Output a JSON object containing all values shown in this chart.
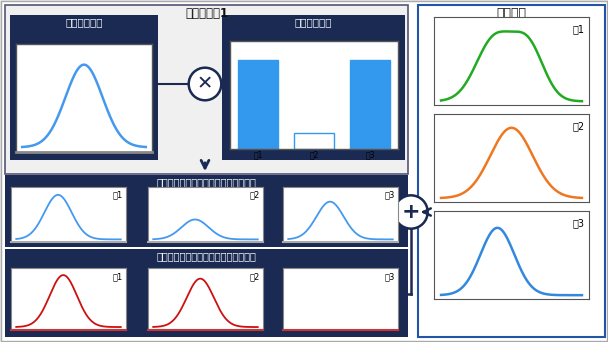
{
  "title_main": "筋シナジー1",
  "title_right": "筋活動量",
  "label_time": "時間パターン",
  "label_combine": "結合パターン",
  "label_synergy1": "筋シナジー１によって生じる筋活動量",
  "label_synergy2": "筋シナジー２によって生じる筋活動量",
  "muscle_labels": [
    "筋1",
    "筋2",
    "筋3"
  ],
  "dark_navy": "#1a2a52",
  "mid_blue": "#1e3a6e",
  "border_blue": "#3355aa",
  "line_blue": "#4499ee",
  "line_green": "#22aa22",
  "line_orange": "#ee7722",
  "line_red": "#cc1111",
  "line_light_blue": "#3388dd",
  "bar_blue": "#3399ee",
  "bg_white": "#ffffff",
  "bg_outer": "#e8e8e8",
  "text_white": "#ffffff",
  "text_dark": "#111111",
  "synergy1_outer_bg": "#f5f5f5",
  "right_panel_border": "#2255aa"
}
